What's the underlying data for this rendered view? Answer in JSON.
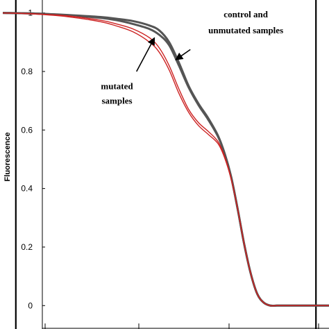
{
  "chart_data": {
    "type": "line",
    "ylabel": "Fluorescence",
    "xlabel": "",
    "xlim": [
      0,
      100
    ],
    "ylim": [
      -0.08,
      1.03
    ],
    "yticks": [
      0,
      0.2,
      0.4,
      0.6,
      0.8,
      1
    ],
    "ytick_labels": [
      "0",
      "0.2",
      "0.4",
      "0.6",
      "0.8",
      "1"
    ],
    "vertical_lines": [
      4,
      96
    ],
    "grid": false,
    "colors": {
      "control": "#555555",
      "mutated": "#cc2222"
    },
    "series": [
      {
        "group": "control",
        "x": [
          0,
          10,
          20,
          30,
          35,
          40,
          45,
          48,
          51,
          54,
          57,
          60,
          63,
          66,
          68,
          70,
          72,
          74,
          76,
          78,
          80,
          82,
          84,
          87,
          90,
          100
        ],
        "y": [
          1.0,
          0.998,
          0.993,
          0.986,
          0.98,
          0.972,
          0.957,
          0.94,
          0.9,
          0.83,
          0.75,
          0.69,
          0.64,
          0.58,
          0.52,
          0.44,
          0.33,
          0.21,
          0.11,
          0.04,
          0.01,
          0.0,
          0.0,
          0.0,
          0.0,
          0.0
        ]
      },
      {
        "group": "control",
        "x": [
          0,
          10,
          20,
          30,
          35,
          40,
          45,
          48,
          51,
          54,
          57,
          60,
          63,
          66,
          68,
          70,
          72,
          74,
          76,
          78,
          80,
          82,
          84,
          87,
          90,
          100
        ],
        "y": [
          1.0,
          0.998,
          0.992,
          0.983,
          0.975,
          0.962,
          0.945,
          0.925,
          0.89,
          0.82,
          0.745,
          0.685,
          0.635,
          0.577,
          0.52,
          0.44,
          0.33,
          0.21,
          0.11,
          0.04,
          0.01,
          0.0,
          0.0,
          0.0,
          0.0,
          0.0
        ]
      },
      {
        "group": "mutated",
        "x": [
          0,
          10,
          20,
          30,
          35,
          40,
          45,
          48,
          51,
          54,
          57,
          60,
          63,
          66,
          68,
          70,
          72,
          74,
          76,
          78,
          80,
          82,
          84,
          87,
          90,
          100
        ],
        "y": [
          1.0,
          0.997,
          0.99,
          0.975,
          0.962,
          0.945,
          0.915,
          0.88,
          0.82,
          0.74,
          0.67,
          0.625,
          0.595,
          0.56,
          0.51,
          0.435,
          0.33,
          0.21,
          0.11,
          0.04,
          0.01,
          0.0,
          0.0,
          0.0,
          0.0,
          0.0
        ]
      },
      {
        "group": "mutated",
        "x": [
          0,
          10,
          20,
          30,
          35,
          40,
          45,
          48,
          51,
          54,
          57,
          60,
          63,
          66,
          68,
          70,
          72,
          74,
          76,
          78,
          80,
          82,
          84,
          87,
          90,
          100
        ],
        "y": [
          1.0,
          0.996,
          0.987,
          0.97,
          0.955,
          0.935,
          0.9,
          0.865,
          0.805,
          0.725,
          0.66,
          0.615,
          0.585,
          0.553,
          0.505,
          0.432,
          0.33,
          0.21,
          0.11,
          0.04,
          0.01,
          0.0,
          0.0,
          0.0,
          0.0,
          0.0
        ]
      }
    ],
    "annotations": [
      {
        "text": [
          "control and",
          "unmutated samples"
        ],
        "text_x": 74.5,
        "text_y": [
          0.985,
          0.93
        ],
        "arrow_from": [
          57.5,
          0.875
        ],
        "arrow_to": [
          53,
          0.84
        ]
      },
      {
        "text": [
          "mutated",
          "samples"
        ],
        "text_x": 35,
        "text_y": [
          0.74,
          0.69
        ],
        "arrow_from": [
          41,
          0.8
        ],
        "arrow_to": [
          46.5,
          0.915
        ]
      }
    ]
  }
}
